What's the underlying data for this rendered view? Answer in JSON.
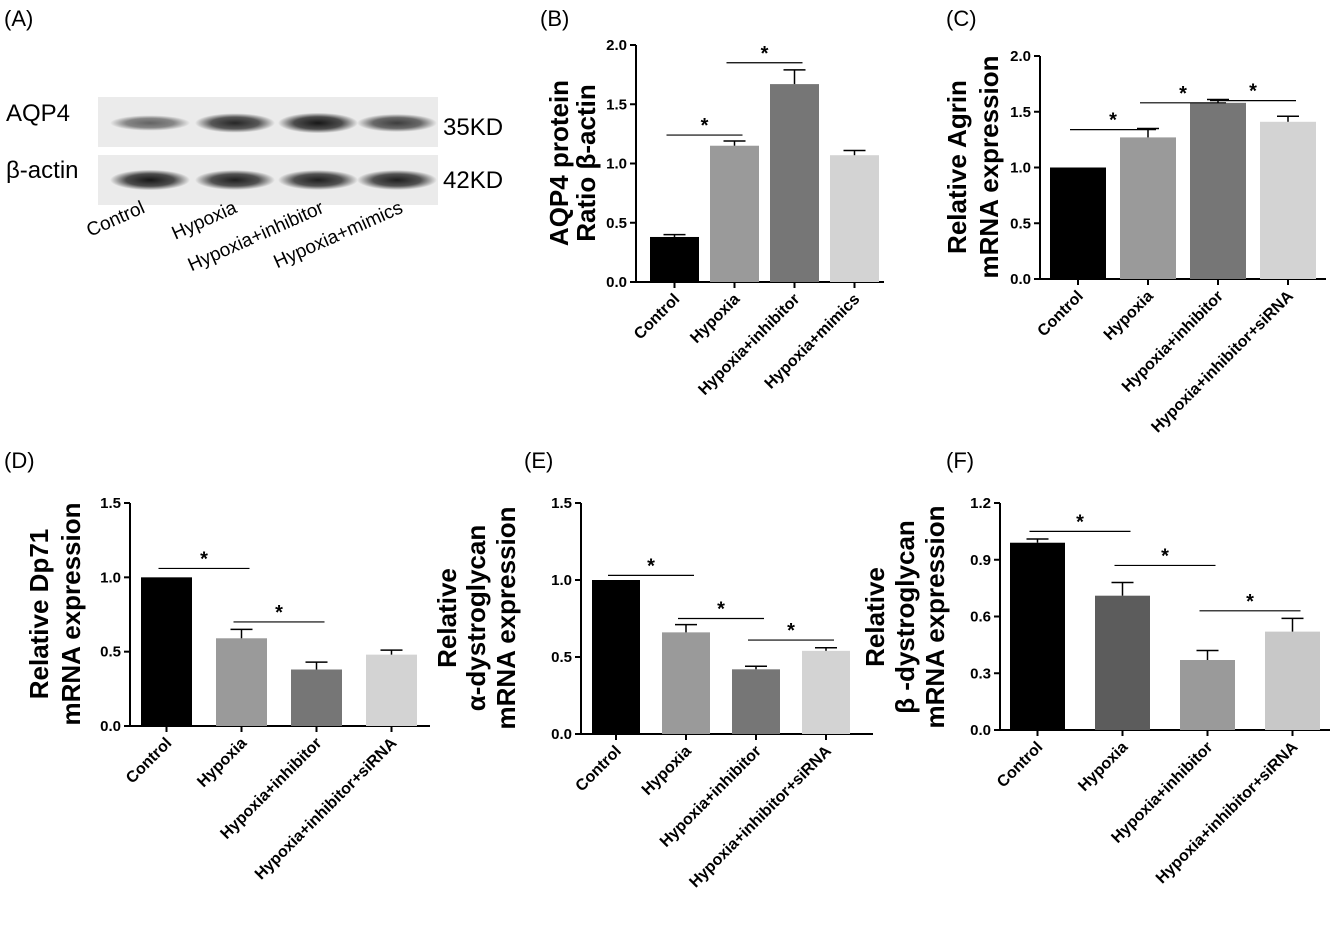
{
  "panel_a": {
    "letter": "(A)",
    "bands": [
      "AQP4",
      "β-actin"
    ],
    "sizes": [
      "35KD",
      "42KD"
    ],
    "lanes": [
      "Control",
      "Hypoxia",
      "Hypoxia+inhibitor",
      "Hypoxia+mimics"
    ],
    "band_intensity": {
      "AQP4": [
        0.35,
        0.75,
        0.85,
        0.6
      ],
      "β-actin": [
        0.85,
        0.8,
        0.8,
        0.8
      ]
    }
  },
  "chart_data": [
    {
      "letter": "(B)",
      "type": "bar",
      "ylabel_lines": [
        "AQP4 protein",
        "Ratio β-actin"
      ],
      "ylim": [
        0,
        2.0
      ],
      "yticks": [
        "0.0",
        "0.5",
        "1.0",
        "1.5",
        "2.0"
      ],
      "categories": [
        "Control",
        "Hypoxia",
        "Hypoxia+inhibitor",
        "Hypoxia+mimics"
      ],
      "values": [
        0.38,
        1.15,
        1.67,
        1.07
      ],
      "errors": [
        0.02,
        0.04,
        0.12,
        0.04
      ],
      "colors": [
        "#000000",
        "#9a9a9a",
        "#767676",
        "#d3d3d3"
      ],
      "significance": [
        {
          "from": 0,
          "to": 1,
          "y": 1.24,
          "label": "*"
        },
        {
          "from": 1,
          "to": 2,
          "y": 1.85,
          "label": "*"
        }
      ]
    },
    {
      "letter": "(C)",
      "type": "bar",
      "ylabel_lines": [
        "Relative Agrin",
        "mRNA expression"
      ],
      "ylim": [
        0,
        2.0
      ],
      "yticks": [
        "0.0",
        "0.5",
        "1.0",
        "1.5",
        "2.0"
      ],
      "categories": [
        "Control",
        "Hypoxia",
        "Hypoxia+inhibitor",
        "Hypoxia+inhibitor+siRNA"
      ],
      "values": [
        1.0,
        1.27,
        1.58,
        1.41
      ],
      "errors": [
        0.0,
        0.08,
        0.03,
        0.05
      ],
      "colors": [
        "#000000",
        "#9a9a9a",
        "#767676",
        "#d3d3d3"
      ],
      "significance": [
        {
          "from": 0,
          "to": 1,
          "y": 1.34,
          "label": "*"
        },
        {
          "from": 1,
          "to": 2,
          "y": 1.58,
          "label": "*"
        },
        {
          "from": 2,
          "to": 3,
          "y": 1.6,
          "label": "*"
        }
      ]
    },
    {
      "letter": "(D)",
      "type": "bar",
      "ylabel_lines": [
        "Relative Dp71",
        "mRNA expression"
      ],
      "ylim": [
        0,
        1.5
      ],
      "yticks": [
        "0.0",
        "0.5",
        "1.0",
        "1.5"
      ],
      "categories": [
        "Control",
        "Hypoxia",
        "Hypoxia+inhibitor",
        "Hypoxia+inhibitor+siRNA"
      ],
      "values": [
        1.0,
        0.59,
        0.38,
        0.48
      ],
      "errors": [
        0.0,
        0.06,
        0.05,
        0.03
      ],
      "colors": [
        "#000000",
        "#9a9a9a",
        "#767676",
        "#d3d3d3"
      ],
      "significance": [
        {
          "from": 0,
          "to": 1,
          "y": 1.06,
          "label": "*"
        },
        {
          "from": 1,
          "to": 2,
          "y": 0.7,
          "label": "*"
        }
      ]
    },
    {
      "letter": "(E)",
      "type": "bar",
      "ylabel_lines": [
        "Relative",
        "α-dystroglycan",
        "mRNA expression"
      ],
      "ylim": [
        0,
        1.5
      ],
      "yticks": [
        "0.0",
        "0.5",
        "1.0",
        "1.5"
      ],
      "categories": [
        "Control",
        "Hypoxia",
        "Hypoxia+inhibitor",
        "Hypoxia+inhibitor+siRNA"
      ],
      "values": [
        1.0,
        0.66,
        0.42,
        0.54
      ],
      "errors": [
        0.0,
        0.05,
        0.02,
        0.02
      ],
      "colors": [
        "#000000",
        "#9a9a9a",
        "#767676",
        "#d3d3d3"
      ],
      "significance": [
        {
          "from": 0,
          "to": 1,
          "y": 1.03,
          "label": "*"
        },
        {
          "from": 1,
          "to": 2,
          "y": 0.75,
          "label": "*"
        },
        {
          "from": 2,
          "to": 3,
          "y": 0.61,
          "label": "*"
        }
      ]
    },
    {
      "letter": "(F)",
      "type": "bar",
      "ylabel_lines": [
        "Relative",
        "β -dystroglycan",
        "mRNA expression"
      ],
      "ylim": [
        0,
        1.2
      ],
      "yticks": [
        "0.0",
        "0.3",
        "0.6",
        "0.9",
        "1.2"
      ],
      "categories": [
        "Control",
        "Hypoxia",
        "Hypoxia+inhibitor",
        "Hypoxia+inhibitor+siRNA"
      ],
      "values": [
        0.99,
        0.71,
        0.37,
        0.52
      ],
      "errors": [
        0.02,
        0.07,
        0.05,
        0.07
      ],
      "colors": [
        "#000000",
        "#5c5c5c",
        "#9a9a9a",
        "#c8c8c8"
      ],
      "significance": [
        {
          "from": 0,
          "to": 1,
          "y": 1.05,
          "label": "*"
        },
        {
          "from": 1,
          "to": 2,
          "y": 0.87,
          "label": "*"
        },
        {
          "from": 2,
          "to": 3,
          "y": 0.63,
          "label": "*"
        }
      ]
    }
  ]
}
